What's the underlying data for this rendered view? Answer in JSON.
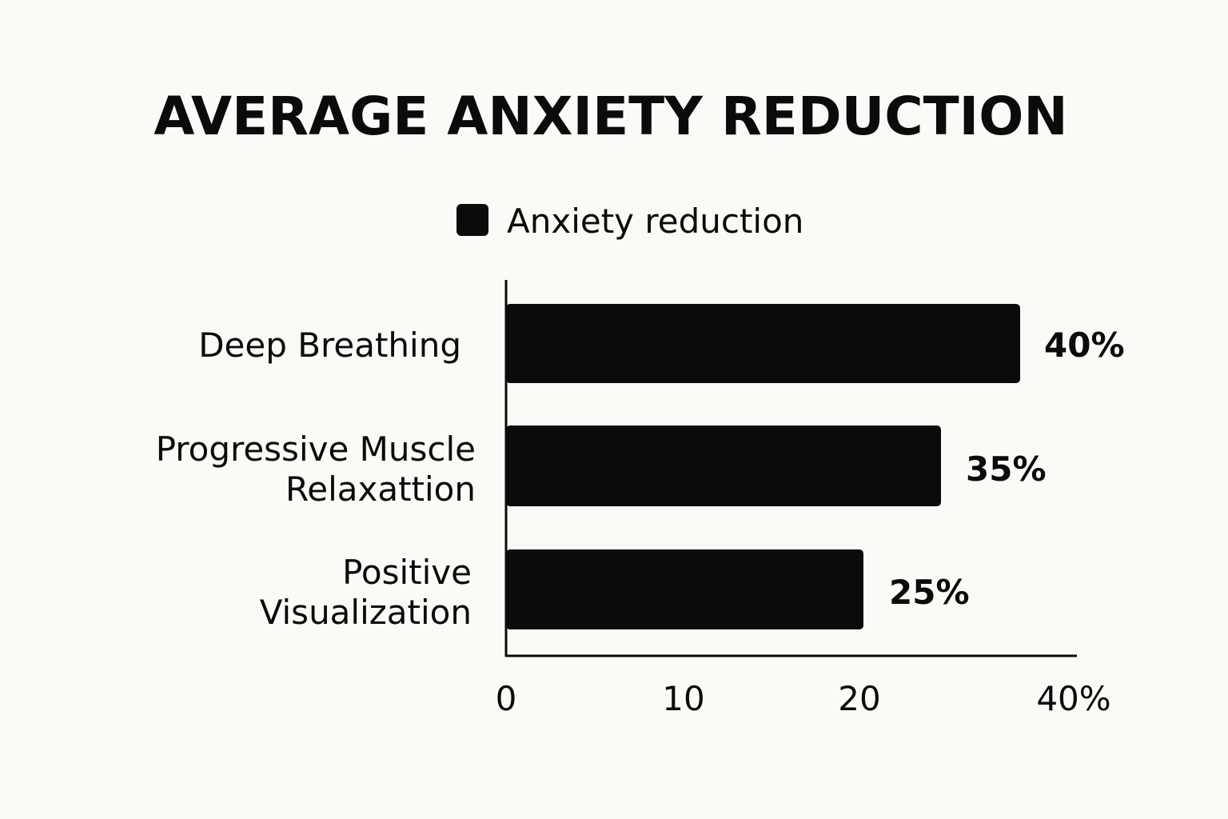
{
  "chart_data": {
    "type": "bar",
    "orientation": "horizontal",
    "title": "AVERAGE ANXIETY REDUCTION",
    "legend": {
      "position": "top-center",
      "entries": [
        {
          "label": "Anxiety reduction",
          "color": "#0b0b0b"
        }
      ]
    },
    "categories": [
      {
        "lines": [
          "Deep Breathing"
        ]
      },
      {
        "lines": [
          "Progressive Muscle",
          "Relaxattion"
        ]
      },
      {
        "lines": [
          "Positive",
          "Visualization"
        ]
      }
    ],
    "series": [
      {
        "name": "Anxiety reduction",
        "values": [
          40,
          35,
          25
        ],
        "color": "#0b0b0b"
      }
    ],
    "value_labels": [
      "40%",
      "35%",
      "25%"
    ],
    "x_ticks": [
      {
        "value": 0,
        "label": "0"
      },
      {
        "value": 10,
        "label": "10"
      },
      {
        "value": 20,
        "label": "20"
      },
      {
        "value": 40,
        "label": "40%"
      }
    ],
    "grid": false
  }
}
